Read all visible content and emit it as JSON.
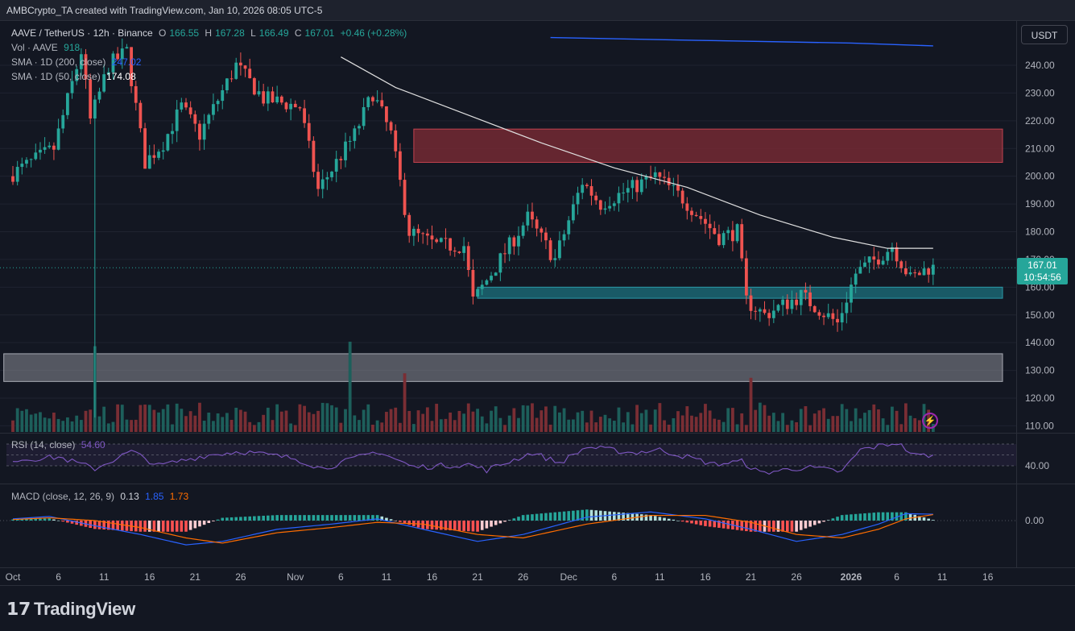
{
  "header": {
    "creator": "AMBCrypto_TA created with TradingView.com, Jan 10, 2026 08:05 UTC-5"
  },
  "legend": {
    "symbol": "AAVE / TetherUS · 12h · Binance",
    "open_label": "O",
    "open": "166.55",
    "high_label": "H",
    "high": "167.28",
    "low_label": "L",
    "low": "166.49",
    "close_label": "C",
    "close": "167.01",
    "change": "+0.46 (+0.28%)",
    "vol_label": "Vol · AAVE",
    "vol": "918",
    "sma200_label": "SMA · 1D (200, close)",
    "sma200": "247.02",
    "sma50_label": "SMA · 1D (50, close)",
    "sma50": "174.08"
  },
  "price_scale": {
    "currency_button": "USDT",
    "current_price": "167.01",
    "countdown": "10:54:56"
  },
  "rsi": {
    "label": "RSI (14, close)",
    "value": "54.60",
    "level_label": "40.00"
  },
  "macd": {
    "label": "MACD (close, 12, 26, 9)",
    "hist": "0.13",
    "macd": "1.85",
    "signal": "1.73",
    "zero_label": "0.00"
  },
  "brand": {
    "name": "TradingView",
    "logo_icon": "tradingview-logo-icon",
    "alert_icon": "lightning-icon"
  },
  "colors": {
    "up": "#26a69a",
    "down": "#ef5350",
    "sma50": "#e0e0e0",
    "sma200": "#2962ff",
    "resistance_zone": "#7b2a35",
    "support_zone": "#1b6b78",
    "low_zone": "#8a8d96",
    "rsi": "#7e57c2",
    "macd": "#2962ff",
    "signal": "#ff6d00"
  },
  "chart_data": [
    {
      "type": "candlestick",
      "title": "",
      "interval": "12h",
      "y_ticks": [
        "240.00",
        "230.00",
        "220.00",
        "210.00",
        "200.00",
        "190.00",
        "180.00",
        "170.00",
        "160.00",
        "150.00",
        "140.00",
        "130.00",
        "120.00",
        "110.00"
      ],
      "x_ticks": [
        "Oct",
        "6",
        "11",
        "16",
        "21",
        "26",
        "Nov",
        "6",
        "11",
        "16",
        "21",
        "26",
        "Dec",
        "6",
        "11",
        "16",
        "21",
        "26",
        "2026",
        "6",
        "11",
        "16"
      ],
      "ylim": [
        107,
        250
      ],
      "anchor_path": [
        {
          "date": "2025-10-01",
          "price": 200
        },
        {
          "date": "2025-10-06",
          "price": 210
        },
        {
          "date": "2025-10-09",
          "price": 245
        },
        {
          "date": "2025-10-10",
          "price": 220
        },
        {
          "date": "2025-10-12",
          "price": 240
        },
        {
          "date": "2025-10-14",
          "price": 245
        },
        {
          "date": "2025-10-16",
          "price": 205
        },
        {
          "date": "2025-10-18",
          "price": 212
        },
        {
          "date": "2025-10-20",
          "price": 225
        },
        {
          "date": "2025-10-22",
          "price": 215
        },
        {
          "date": "2025-10-26",
          "price": 240
        },
        {
          "date": "2025-10-29",
          "price": 228
        },
        {
          "date": "2025-11-02",
          "price": 225
        },
        {
          "date": "2025-11-04",
          "price": 195
        },
        {
          "date": "2025-11-06",
          "price": 205
        },
        {
          "date": "2025-11-08",
          "price": 215
        },
        {
          "date": "2025-11-10",
          "price": 230
        },
        {
          "date": "2025-11-12",
          "price": 215
        },
        {
          "date": "2025-11-14",
          "price": 180
        },
        {
          "date": "2025-11-17",
          "price": 175
        },
        {
          "date": "2025-11-20",
          "price": 175
        },
        {
          "date": "2025-11-21",
          "price": 155
        },
        {
          "date": "2025-11-24",
          "price": 170
        },
        {
          "date": "2025-11-27",
          "price": 185
        },
        {
          "date": "2025-11-30",
          "price": 170
        },
        {
          "date": "2025-12-03",
          "price": 198
        },
        {
          "date": "2025-12-05",
          "price": 190
        },
        {
          "date": "2025-12-08",
          "price": 195
        },
        {
          "date": "2025-12-11",
          "price": 200
        },
        {
          "date": "2025-12-14",
          "price": 192
        },
        {
          "date": "2025-12-18",
          "price": 178
        },
        {
          "date": "2025-12-20",
          "price": 180
        },
        {
          "date": "2025-12-21",
          "price": 155
        },
        {
          "date": "2025-12-23",
          "price": 150
        },
        {
          "date": "2025-12-27",
          "price": 157
        },
        {
          "date": "2025-12-31",
          "price": 147
        },
        {
          "date": "2026-01-02",
          "price": 165
        },
        {
          "date": "2026-01-05",
          "price": 172
        },
        {
          "date": "2026-01-06",
          "price": 175
        },
        {
          "date": "2026-01-08",
          "price": 163
        },
        {
          "date": "2026-01-10",
          "price": 167
        }
      ],
      "zones": [
        {
          "name": "resistance",
          "from": "2025-11-14",
          "to": "2026-01-19",
          "low": 205,
          "high": 217
        },
        {
          "name": "support",
          "from": "2025-11-21",
          "to": "2026-01-19",
          "low": 156,
          "high": 160
        },
        {
          "name": "demand",
          "from": "2025-09-30",
          "to": "2026-01-19",
          "low": 126,
          "high": 136
        }
      ],
      "sma50": [
        {
          "date": "2025-11-06",
          "price": 243
        },
        {
          "date": "2025-11-12",
          "price": 232
        },
        {
          "date": "2025-11-20",
          "price": 222
        },
        {
          "date": "2025-11-28",
          "price": 212
        },
        {
          "date": "2025-12-06",
          "price": 203
        },
        {
          "date": "2025-12-14",
          "price": 196
        },
        {
          "date": "2025-12-22",
          "price": 186
        },
        {
          "date": "2025-12-30",
          "price": 178
        },
        {
          "date": "2026-01-05",
          "price": 174
        },
        {
          "date": "2026-01-10",
          "price": 174
        }
      ],
      "sma200": [
        {
          "date": "2025-11-29",
          "price": 250
        },
        {
          "date": "2025-12-15",
          "price": 249
        },
        {
          "date": "2026-01-01",
          "price": 248
        },
        {
          "date": "2026-01-10",
          "price": 247
        }
      ]
    },
    {
      "type": "line",
      "title": "",
      "name": "RSI",
      "ylim": [
        20,
        80
      ],
      "levels": [
        70,
        40
      ],
      "points": [
        {
          "date": "2025-10-01",
          "v": 48
        },
        {
          "date": "2025-10-06",
          "v": 52
        },
        {
          "date": "2025-10-10",
          "v": 36
        },
        {
          "date": "2025-10-14",
          "v": 60
        },
        {
          "date": "2025-10-17",
          "v": 40
        },
        {
          "date": "2025-10-22",
          "v": 54
        },
        {
          "date": "2025-10-26",
          "v": 60
        },
        {
          "date": "2025-11-01",
          "v": 50
        },
        {
          "date": "2025-11-04",
          "v": 36
        },
        {
          "date": "2025-11-10",
          "v": 60
        },
        {
          "date": "2025-11-14",
          "v": 38
        },
        {
          "date": "2025-11-20",
          "v": 42
        },
        {
          "date": "2025-11-22",
          "v": 34
        },
        {
          "date": "2025-11-27",
          "v": 58
        },
        {
          "date": "2025-11-30",
          "v": 44
        },
        {
          "date": "2025-12-03",
          "v": 66
        },
        {
          "date": "2025-12-08",
          "v": 58
        },
        {
          "date": "2025-12-11",
          "v": 62
        },
        {
          "date": "2025-12-17",
          "v": 42
        },
        {
          "date": "2025-12-20",
          "v": 46
        },
        {
          "date": "2025-12-22",
          "v": 30
        },
        {
          "date": "2025-12-27",
          "v": 38
        },
        {
          "date": "2025-12-31",
          "v": 32
        },
        {
          "date": "2026-01-02",
          "v": 62
        },
        {
          "date": "2026-01-06",
          "v": 72
        },
        {
          "date": "2026-01-08",
          "v": 54
        },
        {
          "date": "2026-01-10",
          "v": 55
        }
      ]
    },
    {
      "type": "line",
      "title": "",
      "name": "MACD",
      "ylim": [
        -10,
        4
      ],
      "points": [
        {
          "date": "2025-10-01",
          "macd": 0.5,
          "signal": 0.3
        },
        {
          "date": "2025-10-05",
          "macd": 1.2,
          "signal": 0.8
        },
        {
          "date": "2025-10-10",
          "macd": -1.5,
          "signal": 0.0
        },
        {
          "date": "2025-10-15",
          "macd": -4.0,
          "signal": -2.0
        },
        {
          "date": "2025-10-20",
          "macd": -7.0,
          "signal": -5.0
        },
        {
          "date": "2025-10-24",
          "macd": -6.0,
          "signal": -6.5
        },
        {
          "date": "2025-10-30",
          "macd": -2.5,
          "signal": -3.5
        },
        {
          "date": "2025-11-05",
          "macd": -1.0,
          "signal": -2.0
        },
        {
          "date": "2025-11-10",
          "macd": 0.5,
          "signal": -0.5
        },
        {
          "date": "2025-11-15",
          "macd": -2.5,
          "signal": -1.0
        },
        {
          "date": "2025-11-21",
          "macd": -6.0,
          "signal": -4.0
        },
        {
          "date": "2025-11-26",
          "macd": -4.0,
          "signal": -5.0
        },
        {
          "date": "2025-12-03",
          "macd": 1.0,
          "signal": -1.0
        },
        {
          "date": "2025-12-10",
          "macd": 2.5,
          "signal": 1.5
        },
        {
          "date": "2025-12-16",
          "macd": 0.5,
          "signal": 1.5
        },
        {
          "date": "2025-12-21",
          "macd": -2.5,
          "signal": -0.5
        },
        {
          "date": "2025-12-26",
          "macd": -6.0,
          "signal": -4.0
        },
        {
          "date": "2025-12-31",
          "macd": -4.0,
          "signal": -5.0
        },
        {
          "date": "2026-01-04",
          "macd": -1.0,
          "signal": -2.5
        },
        {
          "date": "2026-01-07",
          "macd": 2.0,
          "signal": 0.5
        },
        {
          "date": "2026-01-10",
          "macd": 1.85,
          "signal": 1.73
        }
      ]
    }
  ]
}
